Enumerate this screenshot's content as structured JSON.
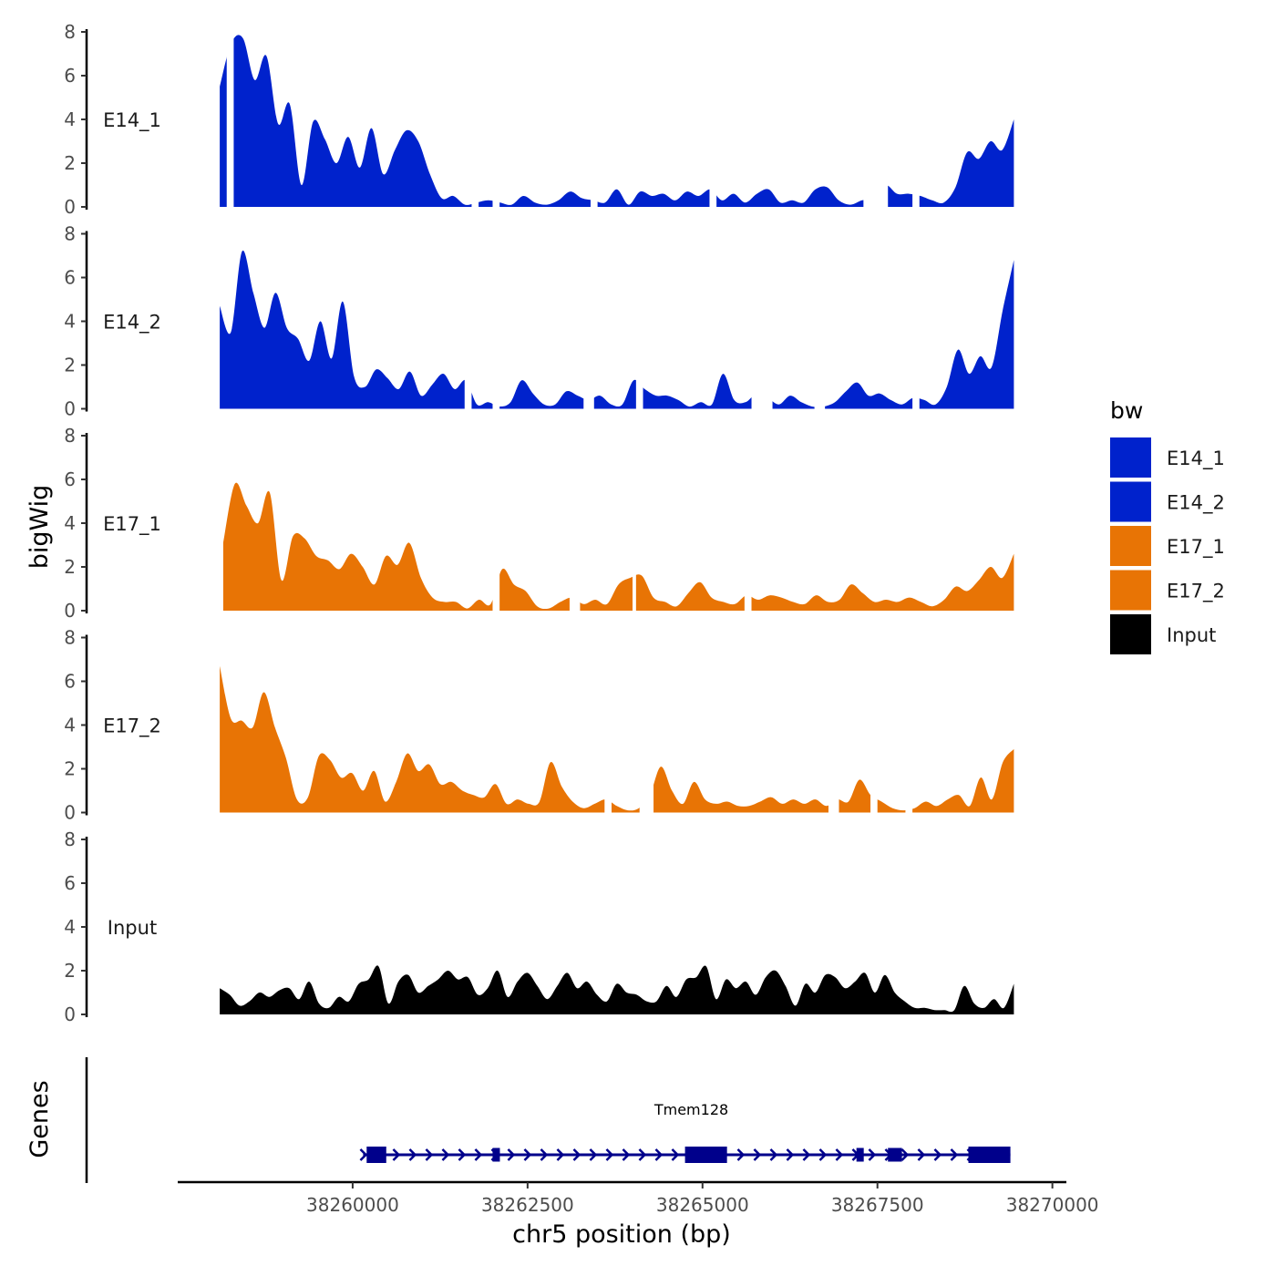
{
  "chart_data": {
    "type": "area",
    "xlabel": "chr5 position (bp)",
    "ylabel": "bigWig",
    "genes_label": "Genes",
    "xlim": [
      38257500,
      38270200
    ],
    "xticks": [
      38260000,
      38262500,
      38265000,
      38267500,
      38270000
    ],
    "xtick_labels": [
      "38260000",
      "38262500",
      "38265000",
      "38267500",
      "38270000"
    ],
    "ylim": [
      0,
      8
    ],
    "yticks": [
      0,
      2,
      4,
      6,
      8
    ],
    "ytick_labels": [
      "0",
      "2",
      "4",
      "6",
      "8"
    ],
    "legend": {
      "title": "bw",
      "position": "right",
      "entries": [
        {
          "label": "E14_1",
          "color": "#0022cc"
        },
        {
          "label": "E14_2",
          "color": "#0022cc"
        },
        {
          "label": "E17_1",
          "color": "#e87405"
        },
        {
          "label": "E17_2",
          "color": "#e87405"
        },
        {
          "label": "Input",
          "color": "#000000"
        }
      ]
    },
    "series": [
      {
        "name": "E14_1",
        "color": "#0022cc",
        "x_start": 38258100,
        "x_end": 38269450,
        "values": [
          5.5,
          7.5,
          7.7,
          5.8,
          6.9,
          3.8,
          4.7,
          1.0,
          3.9,
          3.1,
          2.0,
          3.2,
          1.8,
          3.6,
          1.5,
          2.6,
          3.5,
          3.0,
          1.5,
          0.4,
          0.5,
          0.1,
          0.2,
          0.3,
          0.2,
          0.1,
          0.5,
          0.2,
          0.1,
          0.3,
          0.7,
          0.4,
          0.3,
          0.2,
          0.8,
          0.1,
          0.7,
          0.5,
          0.6,
          0.3,
          0.7,
          0.5,
          0.8,
          0.3,
          0.6,
          0.2,
          0.6,
          0.8,
          0.2,
          0.3,
          0.2,
          0.8,
          0.9,
          0.3,
          0.1,
          0.3,
          0.4,
          1.0,
          0.6,
          0.6,
          0.5,
          0.3,
          0.2,
          0.9,
          2.5,
          2.2,
          3.0,
          2.6,
          4.0
        ],
        "gaps": [
          [
            38258200,
            38258300
          ],
          [
            38261700,
            38261800
          ],
          [
            38262000,
            38262100
          ],
          [
            38263400,
            38263500
          ],
          [
            38265100,
            38265200
          ],
          [
            38267300,
            38267650
          ],
          [
            38268000,
            38268100
          ]
        ]
      },
      {
        "name": "E14_2",
        "color": "#0022cc",
        "x_start": 38258100,
        "x_end": 38269450,
        "values": [
          4.7,
          3.5,
          7.2,
          5.3,
          3.7,
          5.3,
          3.7,
          3.2,
          2.2,
          4.0,
          2.3,
          4.9,
          1.5,
          1.0,
          1.8,
          1.4,
          0.9,
          1.7,
          0.6,
          1.1,
          1.6,
          0.9,
          1.3,
          0.2,
          0.3,
          0.1,
          0.3,
          1.3,
          0.7,
          0.2,
          0.2,
          0.8,
          0.6,
          0.4,
          0.6,
          0.2,
          0.2,
          1.3,
          0.9,
          0.6,
          0.6,
          0.4,
          0.1,
          0.3,
          0.2,
          1.6,
          0.4,
          0.3,
          0.7,
          0.5,
          0.2,
          0.6,
          0.3,
          0.1,
          0.1,
          0.3,
          0.8,
          1.2,
          0.6,
          0.7,
          0.4,
          0.2,
          0.5,
          0.4,
          0.2,
          1.0,
          2.7,
          1.6,
          2.4,
          1.9,
          4.5,
          6.8
        ],
        "gaps": [
          [
            38261600,
            38261700
          ],
          [
            38262000,
            38262100
          ],
          [
            38263300,
            38263450
          ],
          [
            38264050,
            38264150
          ],
          [
            38265700,
            38266000
          ],
          [
            38266600,
            38266750
          ],
          [
            38268000,
            38268100
          ]
        ]
      },
      {
        "name": "E17_1",
        "color": "#e87405",
        "x_start": 38258150,
        "x_end": 38269450,
        "values": [
          3.1,
          5.8,
          4.8,
          4.0,
          5.4,
          1.4,
          3.4,
          3.3,
          2.5,
          2.3,
          1.9,
          2.6,
          2.0,
          1.2,
          2.5,
          2.1,
          3.1,
          1.5,
          0.6,
          0.4,
          0.4,
          0.1,
          0.5,
          0.3,
          1.9,
          1.2,
          0.9,
          0.2,
          0.1,
          0.4,
          0.6,
          0.3,
          0.5,
          0.3,
          1.2,
          1.5,
          1.6,
          0.6,
          0.4,
          0.2,
          0.8,
          1.3,
          0.6,
          0.4,
          0.3,
          0.7,
          0.5,
          0.7,
          0.6,
          0.4,
          0.3,
          0.7,
          0.4,
          0.5,
          1.2,
          0.8,
          0.4,
          0.5,
          0.4,
          0.6,
          0.4,
          0.2,
          0.5,
          1.1,
          0.9,
          1.4,
          2.0,
          1.5,
          2.6
        ],
        "gaps": [
          [
            38262000,
            38262100
          ],
          [
            38263100,
            38263250
          ],
          [
            38264000,
            38264050
          ],
          [
            38265600,
            38265700
          ]
        ]
      },
      {
        "name": "E17_2",
        "color": "#e87405",
        "x_start": 38258100,
        "x_end": 38269450,
        "values": [
          6.7,
          4.3,
          4.2,
          3.9,
          5.5,
          3.9,
          2.5,
          0.6,
          0.7,
          2.6,
          2.4,
          1.6,
          1.8,
          1.0,
          1.9,
          0.5,
          1.4,
          2.7,
          1.9,
          2.2,
          1.3,
          1.4,
          1.0,
          0.8,
          0.7,
          1.3,
          0.4,
          0.6,
          0.4,
          0.5,
          2.3,
          1.2,
          0.5,
          0.2,
          0.4,
          0.6,
          0.3,
          0.1,
          0.2,
          0.8,
          2.1,
          1.0,
          0.4,
          1.4,
          0.6,
          0.4,
          0.5,
          0.3,
          0.3,
          0.5,
          0.7,
          0.4,
          0.6,
          0.4,
          0.6,
          0.3,
          0.6,
          0.5,
          1.5,
          0.8,
          0.5,
          0.2,
          0.1,
          0.2,
          0.5,
          0.3,
          0.6,
          0.8,
          0.3,
          1.6,
          0.6,
          2.3,
          2.9
        ],
        "gaps": [
          [
            38263600,
            38263700
          ],
          [
            38264100,
            38264300
          ],
          [
            38266800,
            38266950
          ],
          [
            38267400,
            38267500
          ],
          [
            38267900,
            38268000
          ]
        ]
      },
      {
        "name": "Input",
        "color": "#000000",
        "x_start": 38258100,
        "x_end": 38269450,
        "values": [
          1.2,
          0.9,
          0.4,
          0.6,
          1.0,
          0.8,
          1.1,
          1.2,
          0.7,
          1.5,
          0.5,
          0.3,
          0.8,
          0.6,
          1.4,
          1.6,
          2.2,
          0.5,
          1.5,
          1.8,
          1.0,
          1.3,
          1.6,
          2.0,
          1.6,
          1.7,
          0.9,
          1.2,
          2.0,
          0.8,
          1.5,
          1.9,
          1.3,
          0.7,
          1.3,
          1.9,
          1.2,
          1.5,
          0.9,
          0.6,
          1.4,
          1.0,
          0.9,
          0.6,
          0.6,
          1.3,
          0.8,
          1.6,
          1.7,
          2.2,
          0.7,
          1.6,
          1.2,
          1.5,
          0.9,
          1.7,
          2.0,
          1.3,
          0.4,
          1.4,
          1.0,
          1.8,
          1.7,
          1.2,
          1.5,
          1.9,
          1.0,
          1.8,
          1.0,
          0.6,
          0.3,
          0.3,
          0.2,
          0.2,
          0.2,
          1.3,
          0.5,
          0.3,
          0.7,
          0.3,
          1.4
        ],
        "gaps": []
      }
    ],
    "gene": {
      "name": "Tmem128",
      "color": "#00008b",
      "start": 38260150,
      "end": 38269400,
      "strand": "+",
      "exons": [
        {
          "start": 38260200,
          "end": 38260480,
          "height": "thick"
        },
        {
          "start": 38262000,
          "end": 38262100,
          "height": "thin"
        },
        {
          "start": 38264750,
          "end": 38265350,
          "height": "thick"
        },
        {
          "start": 38267200,
          "end": 38267280,
          "height": "thin"
        },
        {
          "start": 38267650,
          "end": 38267850,
          "height": "thin"
        },
        {
          "start": 38268800,
          "end": 38269400,
          "height": "thick"
        }
      ]
    }
  }
}
